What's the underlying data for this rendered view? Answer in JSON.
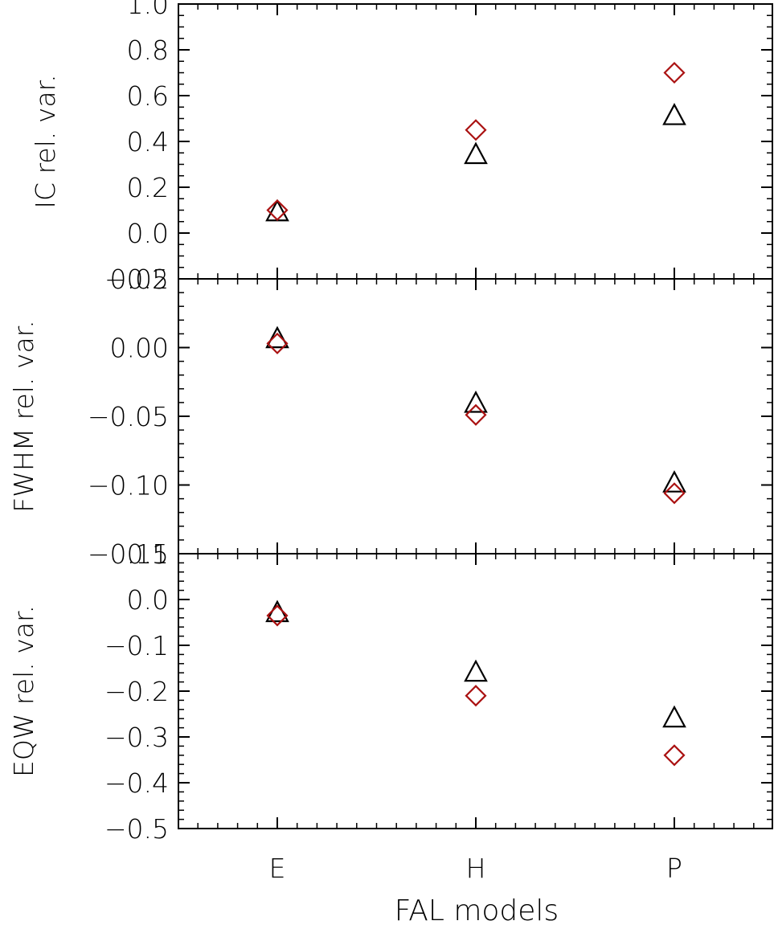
{
  "chart_data": {
    "type": "scatter",
    "categories": [
      "E",
      "H",
      "P"
    ],
    "xlabel": "FAL models",
    "marker_colors": {
      "triangle": "#000000",
      "diamond": "#aa1111"
    },
    "panels": [
      {
        "ylabel": "IC rel. var.",
        "ylim": [
          -0.2,
          1.0
        ],
        "yticks": [
          1.0,
          0.8,
          0.6,
          0.4,
          0.2,
          0.0,
          -0.2
        ],
        "yticklabels": [
          "1.0",
          "0.8",
          "0.6",
          "0.4",
          "0.2",
          "0.0",
          "−0.2"
        ],
        "series": [
          {
            "marker": "triangle",
            "values": [
              0.09,
              0.34,
              0.51
            ]
          },
          {
            "marker": "diamond",
            "values": [
              0.1,
              0.45,
              0.7
            ]
          }
        ]
      },
      {
        "ylabel": "FWHM rel. var.",
        "ylim": [
          -0.15,
          0.05
        ],
        "yticks": [
          0.05,
          0.0,
          -0.05,
          -0.1,
          -0.15
        ],
        "yticklabels": [
          "0.05",
          "0.00",
          "−0.05",
          "−0.10",
          "−0.15"
        ],
        "series": [
          {
            "marker": "triangle",
            "values": [
              0.006,
              -0.041,
              -0.099
            ]
          },
          {
            "marker": "diamond",
            "values": [
              0.003,
              -0.049,
              -0.106
            ]
          }
        ]
      },
      {
        "ylabel": "EQW rel. var.",
        "ylim": [
          -0.5,
          0.1
        ],
        "yticks": [
          0.1,
          0.0,
          -0.1,
          -0.2,
          -0.3,
          -0.4,
          -0.5
        ],
        "yticklabels": [
          "0.1",
          "0.0",
          "−0.1",
          "−0.2",
          "−0.3",
          "−0.4",
          "−0.5"
        ],
        "series": [
          {
            "marker": "triangle",
            "values": [
              -0.03,
              -0.16,
              -0.26
            ]
          },
          {
            "marker": "diamond",
            "values": [
              -0.035,
              -0.21,
              -0.34
            ]
          }
        ]
      }
    ]
  }
}
